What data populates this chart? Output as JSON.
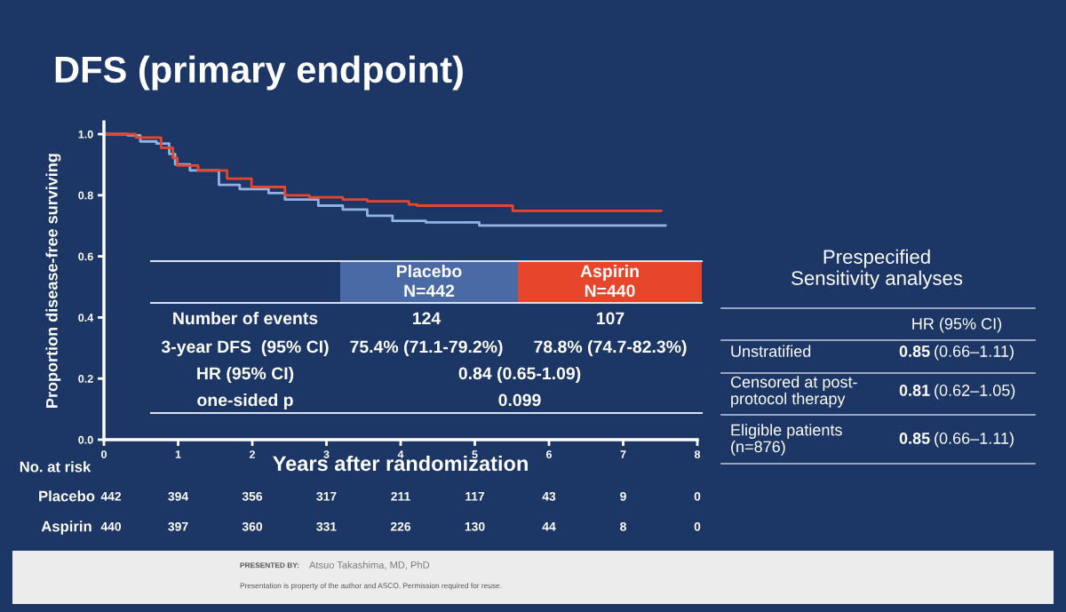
{
  "chart_data": {
    "type": "step",
    "title": "DFS (primary endpoint)",
    "xlabel": "Years after randomization",
    "ylabel": "Proportion disease-free surviving",
    "series": [
      {
        "name": "Placebo",
        "color": "#8fb4e3",
        "x": [
          0,
          0.32,
          0.49,
          0.71,
          0.88,
          0.96,
          1.16,
          1.55,
          1.83,
          2.22,
          2.44,
          2.89,
          3.22,
          3.55,
          3.89,
          4.34,
          5.06,
          7.57
        ],
        "values": [
          1.0,
          0.996,
          0.976,
          0.969,
          0.935,
          0.901,
          0.881,
          0.834,
          0.82,
          0.807,
          0.786,
          0.766,
          0.753,
          0.733,
          0.716,
          0.711,
          0.701,
          0.701
        ]
      },
      {
        "name": "Aspirin",
        "color": "#e8462a",
        "x": [
          0,
          0.43,
          0.77,
          0.93,
          0.99,
          1.27,
          1.66,
          1.99,
          2.44,
          2.77,
          3.22,
          3.55,
          4.11,
          4.22,
          5.51,
          7.51
        ],
        "values": [
          1.0,
          0.989,
          0.955,
          0.922,
          0.897,
          0.881,
          0.854,
          0.827,
          0.8,
          0.793,
          0.786,
          0.78,
          0.77,
          0.766,
          0.749,
          0.749
        ]
      }
    ],
    "xlim": [
      0,
      8
    ],
    "xticks": [
      0,
      1,
      2,
      3,
      4,
      5,
      6,
      7,
      8
    ],
    "ylim": [
      0,
      1.04
    ],
    "yticks": [
      {
        "value": 0,
        "label": "0.0"
      },
      {
        "value": 0.2,
        "label": "0.2"
      },
      {
        "value": 0.4,
        "label": "0.4"
      },
      {
        "value": 0.6,
        "label": "0.6"
      },
      {
        "value": 0.8,
        "label": "0.8"
      },
      {
        "value": 1.0,
        "label": "1.0"
      }
    ],
    "grid": false,
    "legend": false,
    "line_style": "solid",
    "annotations": [
      "N=442",
      "N=440",
      "Number of events",
      "124",
      "107",
      "3-year DFS  (95% CI)",
      "75.4% (71.1-79.2%)",
      "78.8% (74.7-82.3%)",
      "HR (95% CI)",
      "0.84 (0.65-1.09)",
      "one-sided p",
      "0.099",
      "No. at risk",
      "442",
      "394",
      "356",
      "317",
      "211",
      "117",
      "43",
      "9",
      "0",
      "440",
      "397",
      "360",
      "331",
      "226",
      "130",
      "44",
      "8",
      "0",
      "Prespecified\nSensitivity analyses",
      "HR (95% CI)",
      "Unstratified",
      "0.85",
      "(0.66–1.11)",
      "Censored at post-\nprotocol therapy",
      "0.81",
      "(0.62–1.05)",
      "Eligible patients\n(n=876)",
      "0.85",
      "(0.66–1.11)",
      "PRESENTED BY:",
      "Atsuo Takashima, MD, PhD",
      "Presentation is property of the author and ASCO. Permission required for reuse."
    ]
  }
}
